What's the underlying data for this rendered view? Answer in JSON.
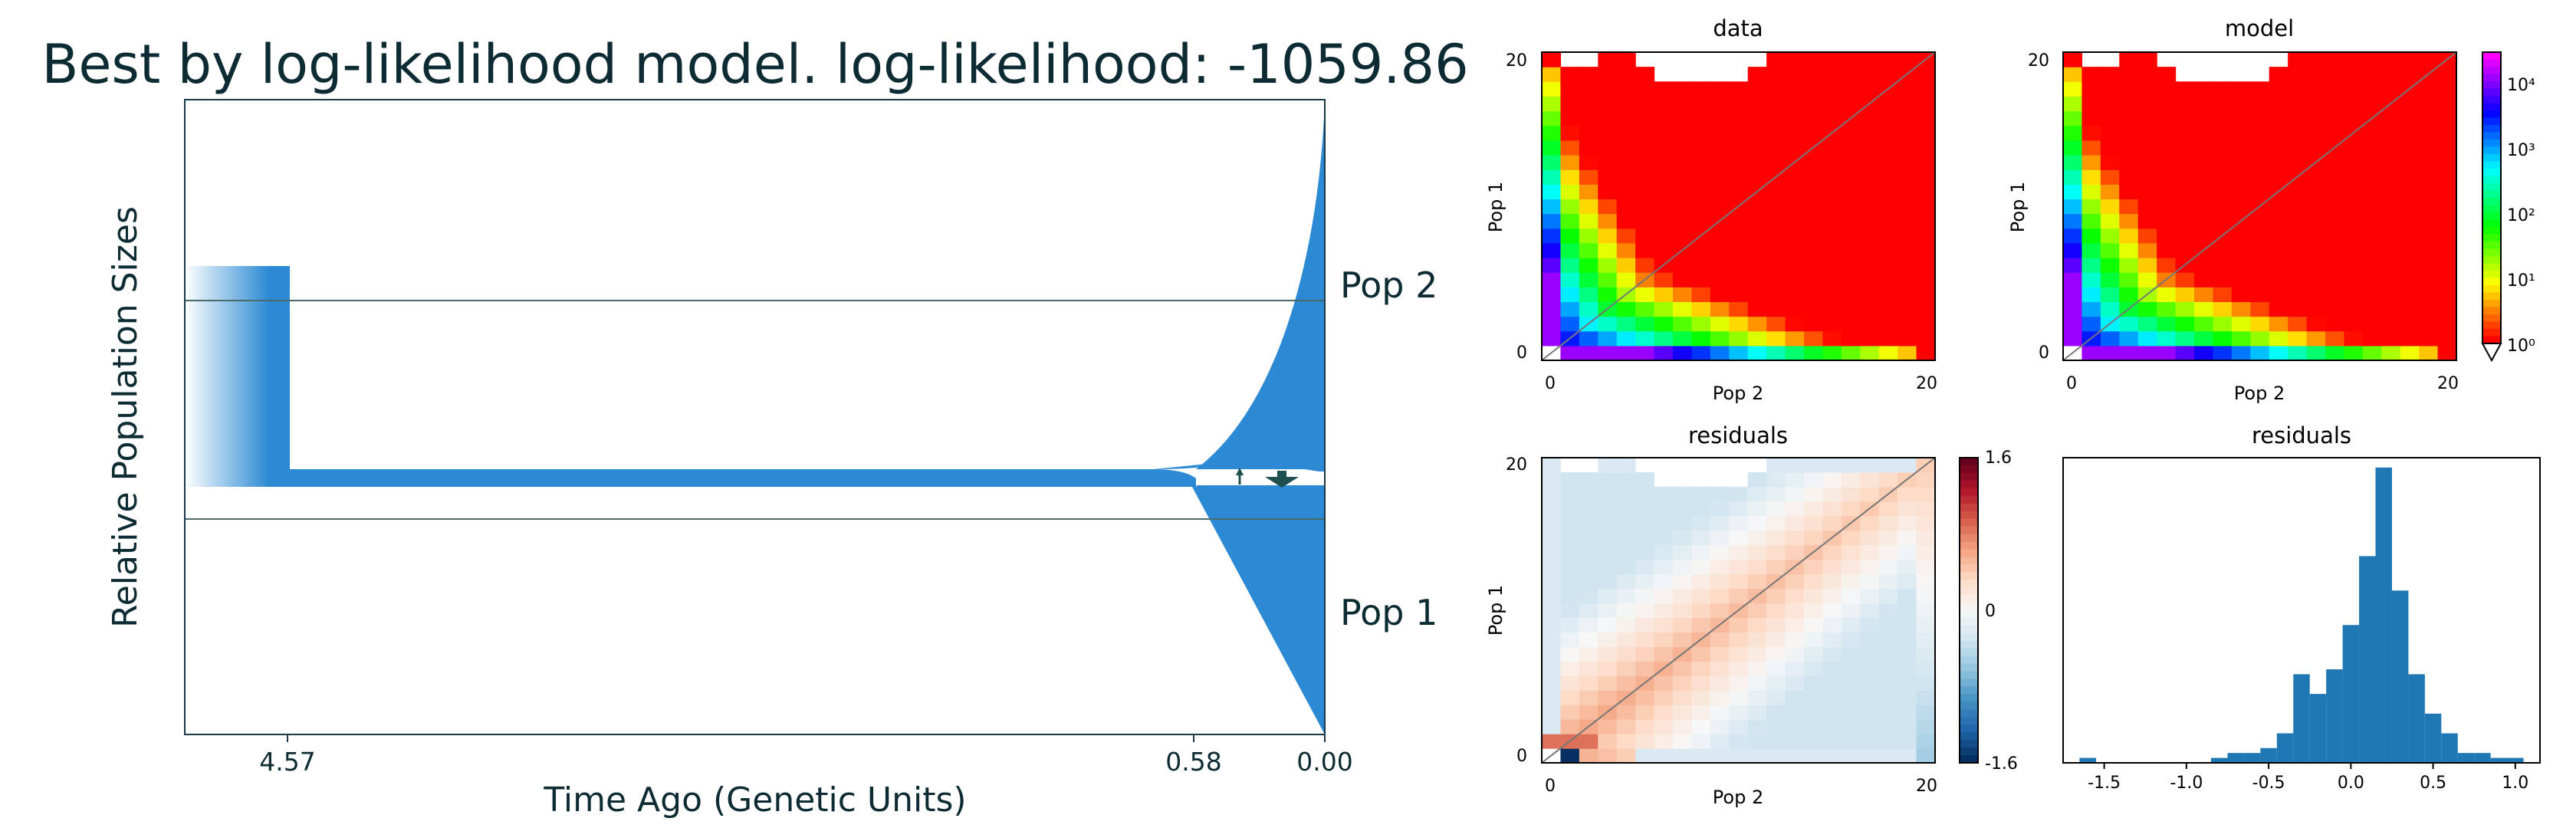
{
  "chart_data": [
    {
      "type": "demographic_model",
      "title": "Best by log-likelihood model. log-likelihood: -1059.86",
      "xlabel": "Time Ago (Genetic Units)",
      "ylabel": "Relative Population Sizes",
      "xticks": [
        "4.57",
        "0.58",
        "0.00"
      ],
      "populations": [
        "Pop 2",
        "Pop 1"
      ],
      "colors": {
        "population": "#2b8ad3",
        "line": "#4a6b6b",
        "text": "#0d2b33",
        "arrow": "#1f4f4f"
      }
    },
    {
      "type": "heatmap",
      "title": "data",
      "xlabel": "Pop 2",
      "ylabel": "Pop 1",
      "xticks": [
        "0",
        "20"
      ],
      "yticks": [
        "0",
        "20"
      ],
      "scale": "log",
      "colormap": "hsv"
    },
    {
      "type": "heatmap",
      "title": "model",
      "xlabel": "Pop 2",
      "ylabel": "Pop 1",
      "xticks": [
        "0",
        "20"
      ],
      "yticks": [
        "0",
        "20"
      ],
      "scale": "log",
      "colorbar_ticks": [
        "10⁰",
        "10¹",
        "10²",
        "10³",
        "10⁴"
      ]
    },
    {
      "type": "heatmap",
      "title": "residuals",
      "xlabel": "Pop 2",
      "ylabel": "Pop 1",
      "xticks": [
        "0",
        "20"
      ],
      "yticks": [
        "0",
        "20"
      ],
      "colormap": "RdBu_r",
      "colorbar_ticks": [
        "1.6",
        "0",
        "-1.6"
      ],
      "colorbar_range": [
        -1.6,
        1.6
      ]
    },
    {
      "type": "bar",
      "title": "residuals",
      "xticks": [
        "-1.5",
        "-1.0",
        "-0.5",
        "0.0",
        "0.5",
        "1.0"
      ],
      "bin_edges": [
        -1.65,
        -1.55,
        -1.45,
        -1.35,
        -1.25,
        -1.15,
        -1.05,
        -0.95,
        -0.85,
        -0.75,
        -0.65,
        -0.55,
        -0.45,
        -0.35,
        -0.25,
        -0.15,
        -0.05,
        0.05,
        0.15,
        0.25,
        0.35,
        0.45,
        0.55,
        0.65,
        0.75,
        0.85,
        0.95,
        1.05,
        1.15
      ],
      "counts": [
        1,
        0,
        0,
        0,
        0,
        0,
        0,
        0,
        1,
        2,
        2,
        3,
        6,
        18,
        14,
        19,
        28,
        42,
        60,
        35,
        18,
        10,
        6,
        2,
        2,
        1,
        1,
        0
      ],
      "xlim": [
        -1.75,
        1.15
      ],
      "ylim": [
        0,
        62
      ],
      "color": "#1f77b4"
    }
  ]
}
